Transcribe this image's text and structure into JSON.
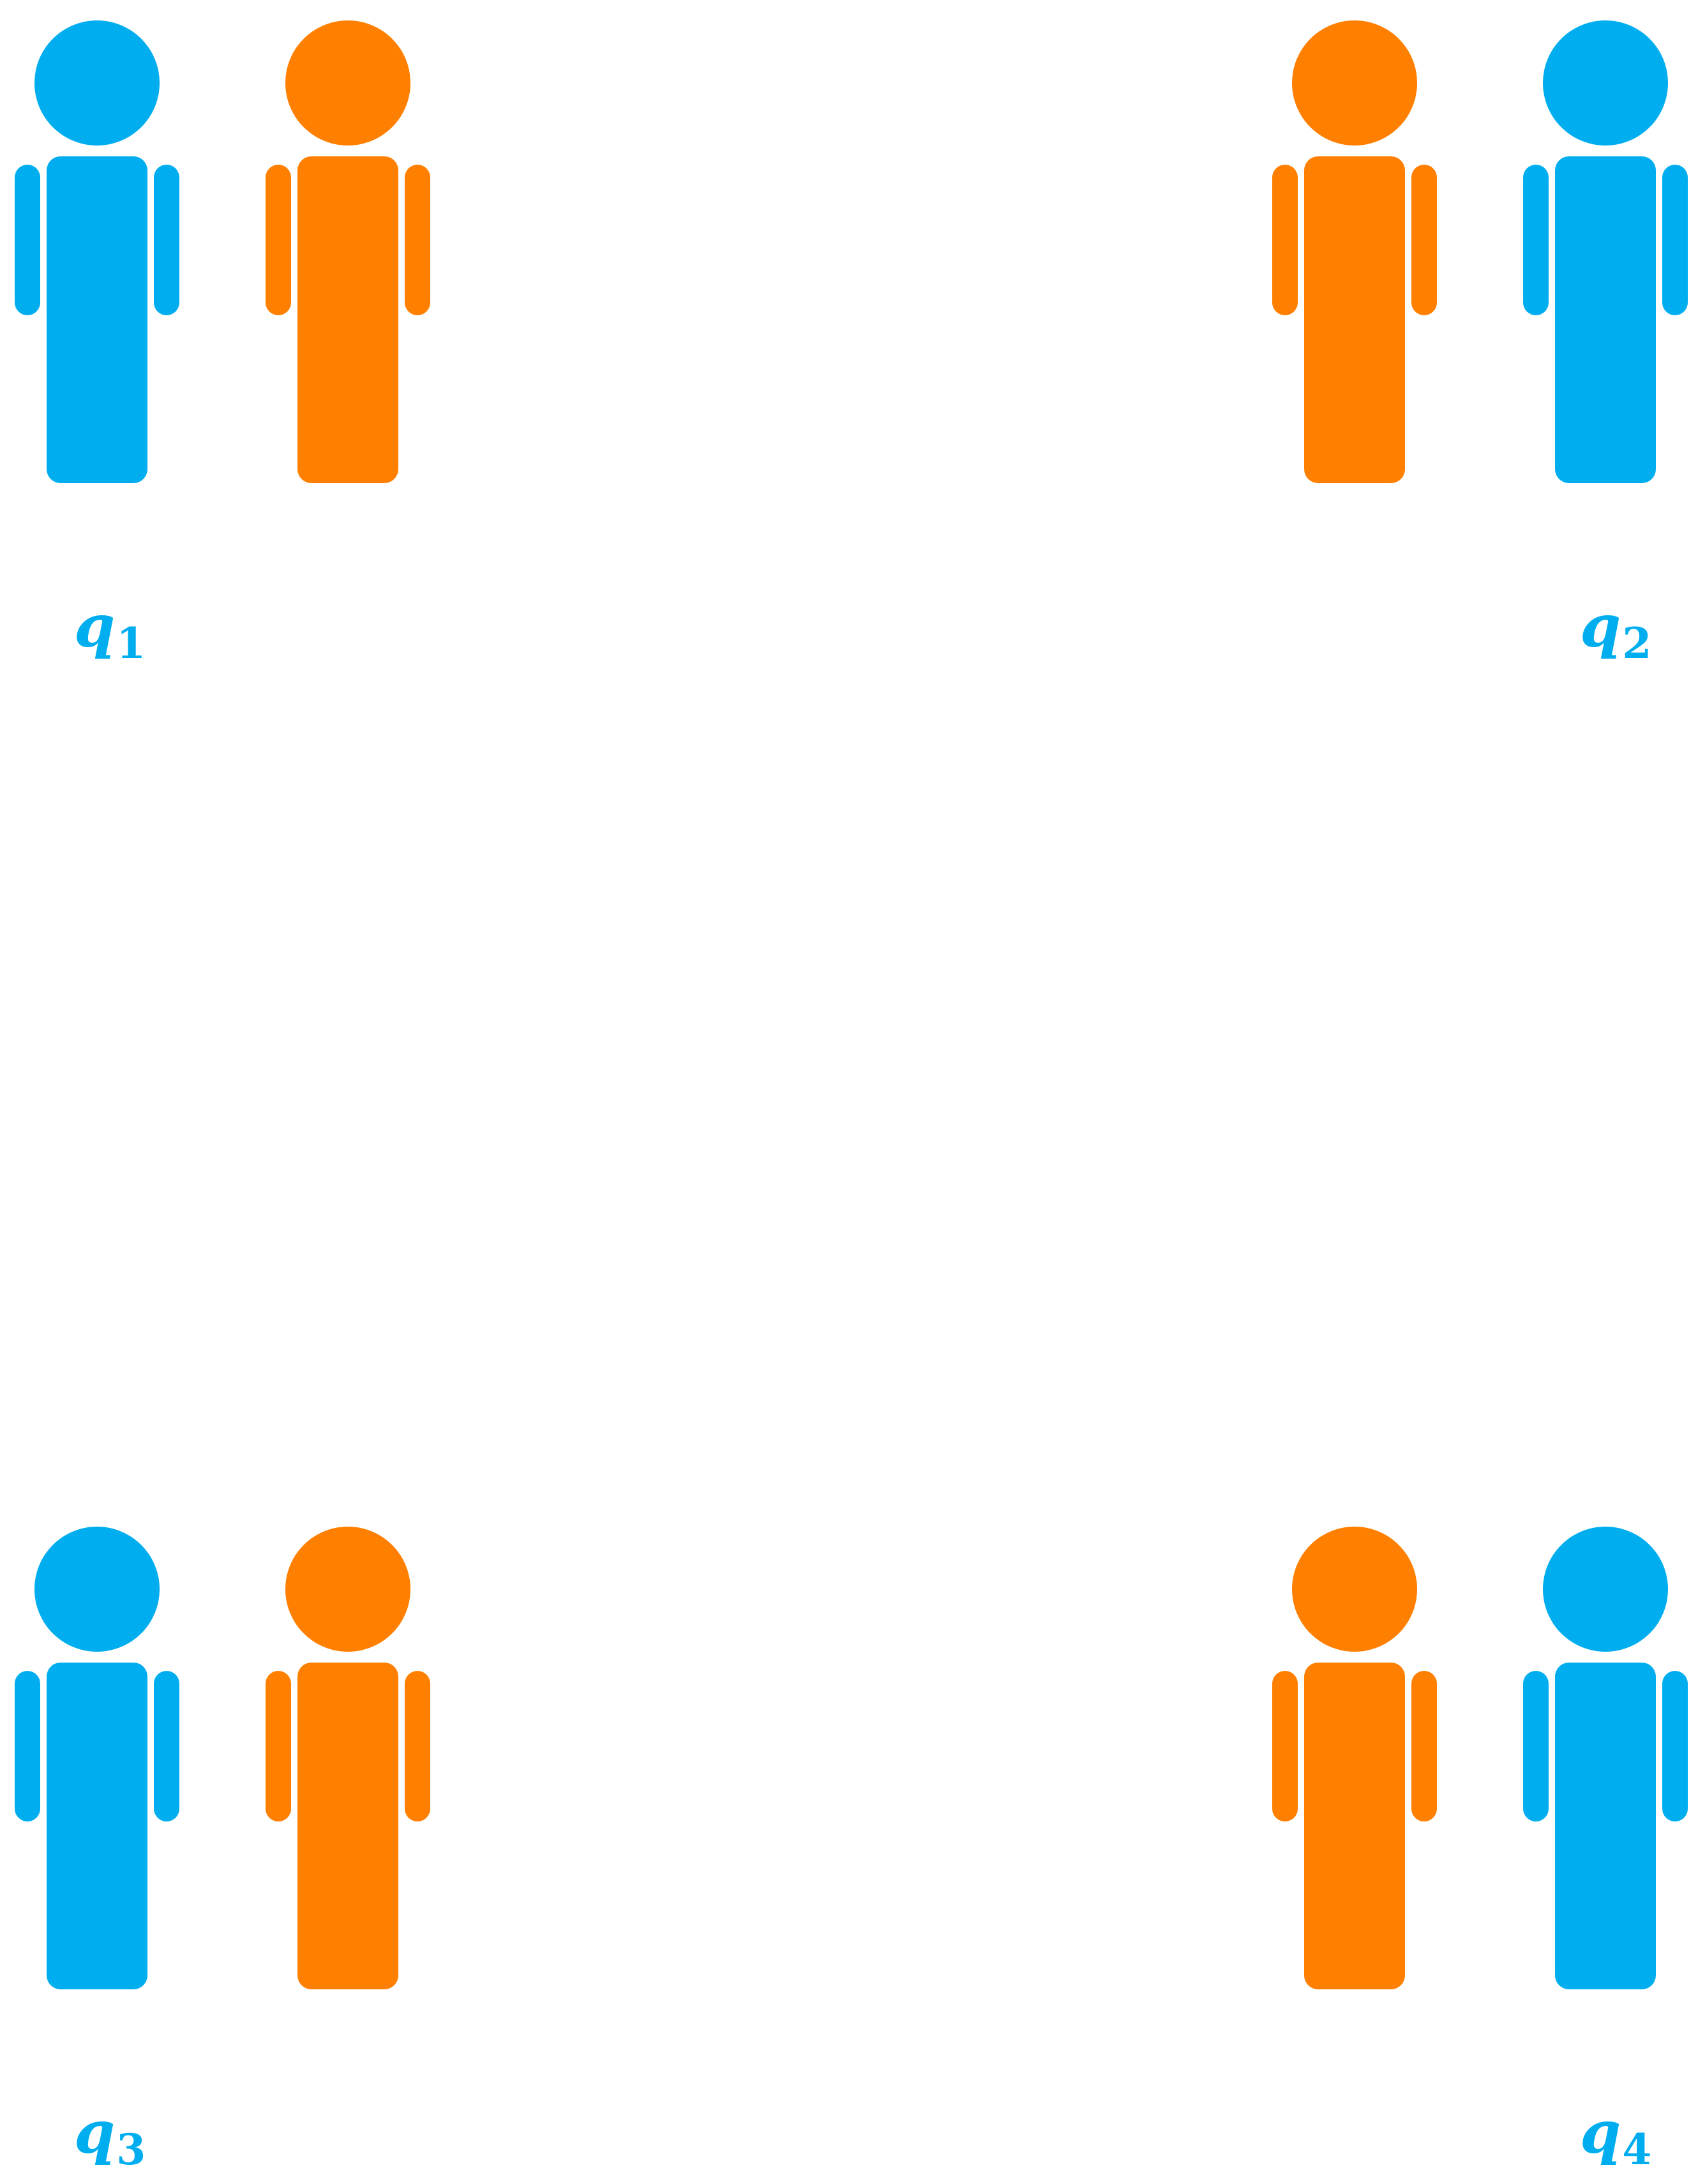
{
  "colors": {
    "blue": "#00aeef",
    "orange": "#ff7f00",
    "background": "#ffffff"
  },
  "groups": [
    {
      "id": "q1",
      "label_var": "q",
      "label_sub": "1",
      "label_color": "#00aeef",
      "people": [
        {
          "color": "#00aeef",
          "icon": "person-icon"
        },
        {
          "color": "#ff7f00",
          "icon": "person-icon"
        }
      ]
    },
    {
      "id": "q2",
      "label_var": "q",
      "label_sub": "2",
      "label_color": "#00aeef",
      "people": [
        {
          "color": "#ff7f00",
          "icon": "person-icon"
        },
        {
          "color": "#00aeef",
          "icon": "person-icon"
        }
      ]
    },
    {
      "id": "q3",
      "label_var": "q",
      "label_sub": "3",
      "label_color": "#00aeef",
      "people": [
        {
          "color": "#00aeef",
          "icon": "person-icon"
        },
        {
          "color": "#ff7f00",
          "icon": "person-icon"
        }
      ]
    },
    {
      "id": "q4",
      "label_var": "q",
      "label_sub": "4",
      "label_color": "#00aeef",
      "people": [
        {
          "color": "#ff7f00",
          "icon": "person-icon"
        },
        {
          "color": "#00aeef",
          "icon": "person-icon"
        }
      ]
    }
  ]
}
